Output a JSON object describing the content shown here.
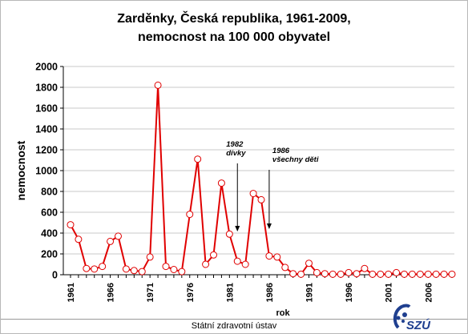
{
  "chart_data": {
    "type": "line",
    "title": "Zarděnky, Česká republika, 1961-2009,",
    "subtitle": "nemocnost na 100 000 obyvatel",
    "xlabel": "rok",
    "ylabel": "nemocnost",
    "ylim": [
      0,
      2000
    ],
    "y_ticks": [
      "0",
      "200",
      "400",
      "600",
      "800",
      "1000",
      "1200",
      "1400",
      "1600",
      "1800",
      "2000"
    ],
    "x_tick_labels": [
      "1961",
      "1966",
      "1971",
      "1976",
      "1981",
      "1986",
      "1991",
      "1996",
      "2001",
      "2006"
    ],
    "x": [
      1961,
      1962,
      1963,
      1964,
      1965,
      1966,
      1967,
      1968,
      1969,
      1970,
      1971,
      1972,
      1973,
      1974,
      1975,
      1976,
      1977,
      1978,
      1979,
      1980,
      1981,
      1982,
      1983,
      1984,
      1985,
      1986,
      1987,
      1988,
      1989,
      1990,
      1991,
      1992,
      1993,
      1994,
      1995,
      1996,
      1997,
      1998,
      1999,
      2000,
      2001,
      2002,
      2003,
      2004,
      2005,
      2006,
      2007,
      2008,
      2009
    ],
    "series": [
      {
        "color": "#e00000",
        "values": [
          480,
          340,
          60,
          55,
          80,
          320,
          370,
          55,
          40,
          30,
          170,
          1820,
          80,
          50,
          30,
          580,
          1110,
          100,
          190,
          880,
          390,
          130,
          100,
          780,
          720,
          180,
          170,
          70,
          10,
          5,
          110,
          20,
          10,
          5,
          5,
          20,
          10,
          60,
          5,
          5,
          5,
          20,
          5,
          5,
          5,
          5,
          5,
          5,
          5
        ]
      }
    ],
    "annotations": [
      {
        "lines": [
          "1982",
          "dívky"
        ],
        "year": 1982
      },
      {
        "lines": [
          "1986",
          "všechny děti"
        ],
        "year": 1986
      }
    ],
    "grid": true
  },
  "footer": {
    "text": "Státní zdravotní ústav"
  },
  "logo": {
    "text": "SZÚ"
  }
}
